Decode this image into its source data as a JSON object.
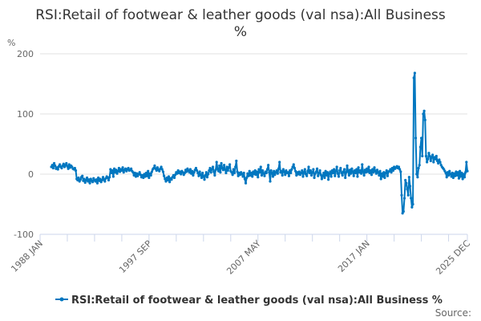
{
  "chart_data": {
    "type": "line",
    "title": "RSI:Retail of footwear & leather goods (val nsa):All Business",
    "subtitle": "%",
    "ylabel": "%",
    "xlabel": "",
    "ylim": [
      -100,
      200
    ],
    "yticks": [
      "200",
      "100",
      "0",
      "-100"
    ],
    "ytick_values": [
      200,
      100,
      0,
      -100
    ],
    "x_range": [
      "1988 JAN",
      "2025 DEC"
    ],
    "xtick_labels": [
      "1988 JAN",
      "1997 SEP",
      "2007 MAY",
      "2017 JAN",
      "2025 DEC"
    ],
    "xtick_month_index": [
      0,
      116,
      232,
      348,
      455
    ],
    "grid": true,
    "legend_position": "bottom",
    "color": "#0077c0",
    "series": [
      {
        "name": "RSI:Retail of footwear & leather goods (val nsa):All Business %",
        "start": "1989 JAN",
        "frequency": "monthly",
        "values": [
          12,
          15,
          10,
          18,
          14,
          9,
          11,
          8,
          13,
          16,
          12,
          10,
          14,
          17,
          12,
          15,
          18,
          13,
          9,
          16,
          11,
          14,
          12,
          9,
          8,
          10,
          6,
          -8,
          -10,
          -6,
          -12,
          -9,
          -5,
          -3,
          -11,
          -8,
          -14,
          -10,
          -6,
          -12,
          -9,
          -15,
          -8,
          -11,
          -13,
          -7,
          -10,
          -12,
          -9,
          -15,
          -6,
          -11,
          -8,
          -13,
          -10,
          -5,
          -9,
          -12,
          -7,
          -4,
          -6,
          -10,
          -5,
          8,
          2,
          6,
          -4,
          9,
          3,
          7,
          1,
          5,
          10,
          4,
          8,
          6,
          11,
          3,
          7,
          9,
          5,
          8,
          10,
          6,
          7,
          9,
          5,
          3,
          -2,
          2,
          -4,
          1,
          -3,
          0,
          3,
          -1,
          -5,
          -2,
          -6,
          0,
          -4,
          2,
          -3,
          5,
          -6,
          1,
          -2,
          4,
          8,
          10,
          14,
          9,
          6,
          11,
          7,
          5,
          9,
          12,
          8,
          4,
          -3,
          -8,
          -12,
          -6,
          -10,
          -4,
          -13,
          -7,
          -9,
          -5,
          -2,
          -6,
          -1,
          3,
          1,
          6,
          2,
          4,
          0,
          5,
          3,
          -1,
          2,
          7,
          4,
          9,
          6,
          3,
          8,
          1,
          5,
          -2,
          3,
          7,
          10,
          6,
          2,
          -3,
          4,
          -1,
          -6,
          2,
          -4,
          -9,
          -2,
          3,
          -5,
          0,
          6,
          10,
          3,
          8,
          12,
          4,
          -2,
          7,
          20,
          9,
          5,
          14,
          3,
          18,
          10,
          7,
          15,
          8,
          2,
          12,
          6,
          11,
          16,
          5,
          3,
          -1,
          8,
          2,
          12,
          22,
          4,
          -3,
          2,
          -1,
          3,
          0,
          -4,
          2,
          -8,
          -15,
          -6,
          1,
          -3,
          5,
          -2,
          2,
          -4,
          4,
          0,
          6,
          -1,
          4,
          -5,
          8,
          3,
          12,
          -2,
          6,
          1,
          -3,
          4,
          2,
          8,
          15,
          3,
          -12,
          6,
          2,
          -4,
          5,
          -1,
          3,
          6,
          1,
          9,
          20,
          3,
          5,
          -2,
          8,
          4,
          -1,
          6,
          2,
          3,
          -3,
          6,
          2,
          8,
          12,
          16,
          10,
          5,
          -2,
          3,
          0,
          4,
          -1,
          2,
          6,
          -4,
          3,
          8,
          0,
          -3,
          5,
          12,
          2,
          6,
          -2,
          3,
          8,
          -6,
          1,
          4,
          9,
          -3,
          2,
          6,
          -1,
          -8,
          -3,
          2,
          -6,
          5,
          -2,
          3,
          -9,
          1,
          4,
          -4,
          6,
          2,
          8,
          -3,
          5,
          12,
          1,
          -4,
          6,
          10,
          2,
          -2,
          4,
          8,
          -6,
          3,
          14,
          5,
          -2,
          7,
          1,
          9,
          4,
          -3,
          6,
          2,
          8,
          -4,
          11,
          3,
          6,
          1,
          16,
          4,
          -2,
          7,
          3,
          9,
          4,
          12,
          2,
          6,
          -1,
          8,
          3,
          11,
          5,
          1,
          7,
          3,
          -2,
          5,
          -8,
          1,
          -4,
          3,
          -6,
          2,
          6,
          -3,
          4,
          5,
          8,
          3,
          10,
          6,
          12,
          9,
          11,
          13,
          10,
          12,
          8,
          4,
          -35,
          -65,
          -62,
          -40,
          -10,
          -15,
          -25,
          -35,
          -5,
          -20,
          -40,
          -55,
          -50,
          160,
          168,
          60,
          0,
          -5,
          10,
          15,
          45,
          60,
          30,
          100,
          105,
          90,
          30,
          20,
          25,
          35,
          30,
          22,
          28,
          32,
          20,
          28,
          25,
          30,
          22,
          18,
          24,
          20,
          15,
          12,
          10,
          8,
          5,
          2,
          -5,
          3,
          -2,
          5,
          0,
          -4,
          2,
          -6,
          1,
          -3,
          4,
          -2,
          3,
          -7,
          5,
          -4,
          2,
          -8,
          0,
          -5,
          3,
          20,
          5
        ]
      }
    ],
    "source_label": "Source:"
  }
}
